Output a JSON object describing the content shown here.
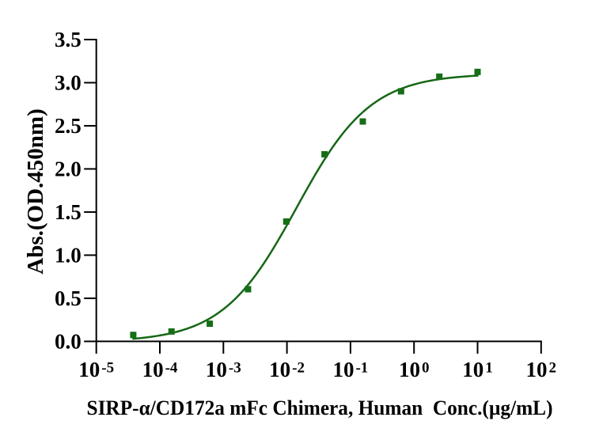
{
  "chart_data": {
    "type": "scatter",
    "title": "",
    "xlabel": "SIRP-α/CD172a mFc Chimera, Human  Conc.(µg/mL)",
    "ylabel": "Abs.(OD.450nm)",
    "x": [
      3.8147e-05,
      0.000152588,
      0.000610352,
      0.00244141,
      0.00976563,
      0.0390625,
      0.15625,
      0.625,
      2.5,
      10
    ],
    "y": [
      0.075,
      0.115,
      0.205,
      0.605,
      1.39,
      2.17,
      2.55,
      2.9,
      3.07,
      3.125
    ],
    "x_scale": "log10",
    "xlim_log10": [
      -5,
      2
    ],
    "ylim": [
      0,
      3.5
    ],
    "x_tick_base": "10",
    "x_tick_exponents": [
      "-5",
      "-4",
      "-3",
      "-2",
      "-1",
      "0",
      "1",
      "2"
    ],
    "y_tick_labels": [
      "0.0",
      "0.5",
      "1.0",
      "1.5",
      "2.0",
      "2.5",
      "3.0",
      "3.5"
    ],
    "y_tick_values": [
      0,
      0.5,
      1,
      1.5,
      2,
      2.5,
      3,
      3.5
    ],
    "curve_fit": {
      "model": "4PL",
      "bottom": -0.0074,
      "top": 3.1052,
      "logEC50": -1.8494,
      "hill": 0.7438,
      "x_log10_range": [
        -4.4185,
        1.0
      ]
    },
    "grid": false,
    "legend": null,
    "colors": {
      "curve": "#166716",
      "marker": "#166e16",
      "axis": "#000000",
      "text": "#000000",
      "background": "#ffffff"
    },
    "marker_shape": "square"
  }
}
